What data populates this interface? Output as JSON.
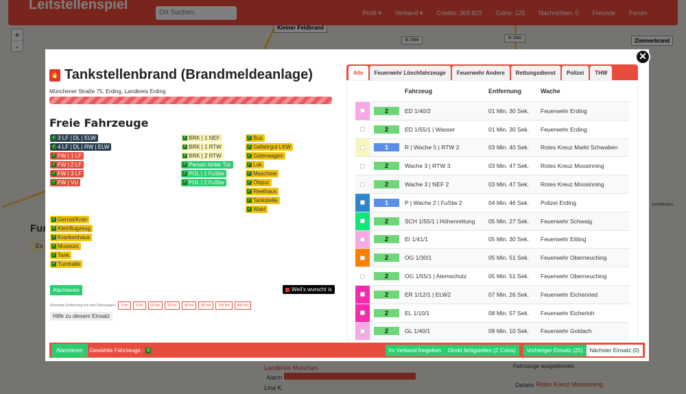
{
  "navbar": {
    "logo": "Leitstellenspiel",
    "search_placeholder": "Ort Suchen..",
    "links": [
      "Profil ▾",
      "Verband ▾",
      "Credits: 368.823",
      "Coins: 125",
      "Nachrichten: 0",
      "Freunde",
      "Forum"
    ]
  },
  "map": {
    "zoom_in": "+",
    "zoom_out": "-",
    "labels": [
      "Kleiner Feldbrand",
      "Zimmerbrand",
      "St 2084",
      "St 2580"
    ],
    "attribution": "contributors."
  },
  "background": {
    "heading_partial": "Fur",
    "alert_partial": "Es",
    "landkreis": "Landkreis München",
    "alarm": "Alarm",
    "user": "Lina K.",
    "details": "Details",
    "station": "Rotes Kreuz Moosinning",
    "hidden_note": "Fahrzeuge ausgeblendet."
  },
  "mission": {
    "title": "Tankstellenbrand (Brandmeldeanlage)",
    "address": "Münchener Straße 75, Erding, Landkreis Erding",
    "progress": 100,
    "free_vehicles_heading": "Freie Fahrzeuge",
    "aao": [
      {
        "label": "3 LF | DL | ELW",
        "style": "navy"
      },
      {
        "label": "4 LF | DL | RW | ELW",
        "style": "navy"
      },
      {
        "label": "FW | 1 LF",
        "style": "red"
      },
      {
        "label": "FW | 2 LF",
        "style": "red"
      },
      {
        "label": "FW | 3 LF",
        "style": "red"
      },
      {
        "label": "FW | VU",
        "style": "red"
      },
      {
        "label": "BRK | 1 NEF",
        "style": "ly"
      },
      {
        "label": "BRK | 1 RTW",
        "style": "ly"
      },
      {
        "label": "BRK | 2 RTW",
        "style": "ly"
      },
      {
        "label": "Person hinter Tür",
        "style": "gr"
      },
      {
        "label": "POL | 1 FuStw",
        "style": "gr"
      },
      {
        "label": "POL | 2 FuStw",
        "style": "gr"
      },
      {
        "label": "Bus",
        "style": "ye"
      },
      {
        "label": "Gefahrgut LKW",
        "style": "ye"
      },
      {
        "label": "Güterwagen",
        "style": "ye"
      },
      {
        "label": "Lok",
        "style": "ye"
      },
      {
        "label": "Maschine",
        "style": "ye"
      },
      {
        "label": "Ölspur",
        "style": "ye"
      },
      {
        "label": "Reethaus",
        "style": "ye"
      },
      {
        "label": "Tankstelle",
        "style": "ye"
      },
      {
        "label": "Wald",
        "style": "ye"
      },
      {
        "label": "Gerüst/Kran",
        "style": "ye"
      },
      {
        "label": "Kleinflugzeug",
        "style": "ye"
      },
      {
        "label": "Krankenhaus",
        "style": "ye"
      },
      {
        "label": "Museum",
        "style": "ye"
      },
      {
        "label": "Tank",
        "style": "ye"
      },
      {
        "label": "Turnhalle",
        "style": "ye"
      }
    ],
    "alarm_button": "Alarmieren",
    "weil_label": "Weil's wurscht is",
    "max_distance_label": "Maximale Entfernung von den Fahrzeugen:",
    "distances": [
      "1 km",
      "5 km",
      "10 km",
      "20 km",
      "40 km",
      "50 km",
      "100 km",
      "400 km"
    ],
    "help_button": "Hilfe zu diesem Einsatz"
  },
  "vehicles": {
    "tabs": [
      "Alle",
      "Feuerwehr Löschfahrzeuge",
      "Feuerwehr Andere",
      "Rettungsdienst",
      "Polizei",
      "THW"
    ],
    "active_tab": 0,
    "columns": [
      "Fahrzeug",
      "Entfernung",
      "Wache"
    ],
    "rows": [
      {
        "color": "#f9a8e6",
        "status": "2",
        "name": "ED 1/40/2",
        "distance": "01 Min. 30 Sek.",
        "station": "Feuerwehr Erding"
      },
      {
        "color": "",
        "status": "2",
        "name": "ED 1/55/1 | Wasser",
        "distance": "01 Min. 30 Sek.",
        "station": "Feuerwehr Erding"
      },
      {
        "color": "#f8f7b9",
        "status": "1",
        "name": "R | Wache 5 | RTW 2",
        "distance": "03 Min. 40 Sek.",
        "station": "Rotes Kreuz Markt Schwaben"
      },
      {
        "color": "",
        "status": "2",
        "name": "Wache 3 | RTW 3",
        "distance": "03 Min. 47 Sek.",
        "station": "Rotes Kreuz Moosinning"
      },
      {
        "color": "",
        "status": "2",
        "name": "Wache 3 | NEF 2",
        "distance": "03 Min. 47 Sek.",
        "station": "Rotes Kreuz Moosinning"
      },
      {
        "color": "#2c86d0",
        "status": "1",
        "name": "P | Wache 2 | FuStw 2",
        "distance": "04 Min. 46 Sek.",
        "station": "Polizei Erding"
      },
      {
        "color": "#0be77a",
        "status": "2",
        "name": "SCH 1/55/1 | Höhenrettung",
        "distance": "05 Min. 27 Sek.",
        "station": "Feuerwehr Schwaig"
      },
      {
        "color": "#f9a8e6",
        "status": "2",
        "name": "EI 1/41/1",
        "distance": "05 Min. 30 Sek.",
        "station": "Feuerwehr Eitting"
      },
      {
        "color": "#ff7f00",
        "status": "2",
        "name": "OG 1/30/1",
        "distance": "05 Min. 51 Sek.",
        "station": "Feuerwehr Oberneuching"
      },
      {
        "color": "",
        "status": "2",
        "name": "OG 1/55/1 | Atemschutz",
        "distance": "05 Min. 51 Sek.",
        "station": "Feuerwehr Oberneuching"
      },
      {
        "color": "#f72ab0",
        "status": "2",
        "name": "ER 1/12/1 | ELW2",
        "distance": "07 Min. 26 Sek.",
        "station": "Feuerwehr Eichenried"
      },
      {
        "color": "#f72ab0",
        "status": "2",
        "name": "EL 1/10/1",
        "distance": "08 Min. 57 Sek.",
        "station": "Feuerwehr Eicherloh"
      },
      {
        "color": "#f9a8e6",
        "status": "2",
        "name": "GL 1/40/1",
        "distance": "09 Min. 10 Sek.",
        "station": "Feuerwehr Goldach"
      }
    ]
  },
  "footer": {
    "alarm": "Alarmieren",
    "selected_label": "Gewählte Fahrzeuge :",
    "selected_count": "0",
    "share": "Im Verband freigeben",
    "finish": "Direkt fertigstellen (2 Coins)",
    "prev": "Vorheriger Einsatz (25)",
    "next": "Nächster Einsatz (0)"
  },
  "colors": {
    "accent": "#e74c3c",
    "status2": "#6fd67a",
    "status1": "#5b8ee6"
  }
}
